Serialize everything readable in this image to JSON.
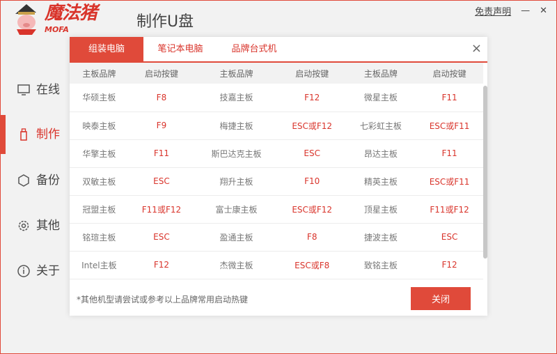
{
  "window": {
    "disclaimer": "免责声明",
    "minimize": "—",
    "close": "✕"
  },
  "logo": {
    "text": "魔法猪",
    "sub": "MOFA"
  },
  "app_title": "制作U盘",
  "sidebar": {
    "items": [
      {
        "label": "在线",
        "icon": "monitor-icon"
      },
      {
        "label": "制作",
        "icon": "usb-icon",
        "active": true
      },
      {
        "label": "备份",
        "icon": "backup-icon"
      },
      {
        "label": "其他",
        "icon": "gear-icon"
      },
      {
        "label": "关于",
        "icon": "info-icon"
      }
    ]
  },
  "accent": "#e04a3a",
  "modal": {
    "tabs": [
      {
        "label": "组装电脑",
        "active": true
      },
      {
        "label": "笔记本电脑"
      },
      {
        "label": "品牌台式机"
      }
    ],
    "headers": [
      "主板品牌",
      "启动按键",
      "主板品牌",
      "启动按键",
      "主板品牌",
      "启动按键"
    ],
    "rows": [
      [
        "华硕主板",
        "F8",
        "技嘉主板",
        "F12",
        "微星主板",
        "F11"
      ],
      [
        "映泰主板",
        "F9",
        "梅捷主板",
        "ESC或F12",
        "七彩虹主板",
        "ESC或F11"
      ],
      [
        "华擎主板",
        "F11",
        "斯巴达克主板",
        "ESC",
        "昂达主板",
        "F11"
      ],
      [
        "双敏主板",
        "ESC",
        "翔升主板",
        "F10",
        "精英主板",
        "ESC或F11"
      ],
      [
        "冠盟主板",
        "F11或F12",
        "富士康主板",
        "ESC或F12",
        "顶星主板",
        "F11或F12"
      ],
      [
        "铭瑄主板",
        "ESC",
        "盈通主板",
        "F8",
        "捷波主板",
        "ESC"
      ],
      [
        "Intel主板",
        "F12",
        "杰微主板",
        "ESC或F8",
        "致铭主板",
        "F12"
      ]
    ],
    "note": "*其他机型请尝试或参考以上品牌常用启动热键",
    "close_label": "关闭",
    "close_icon": "×"
  }
}
